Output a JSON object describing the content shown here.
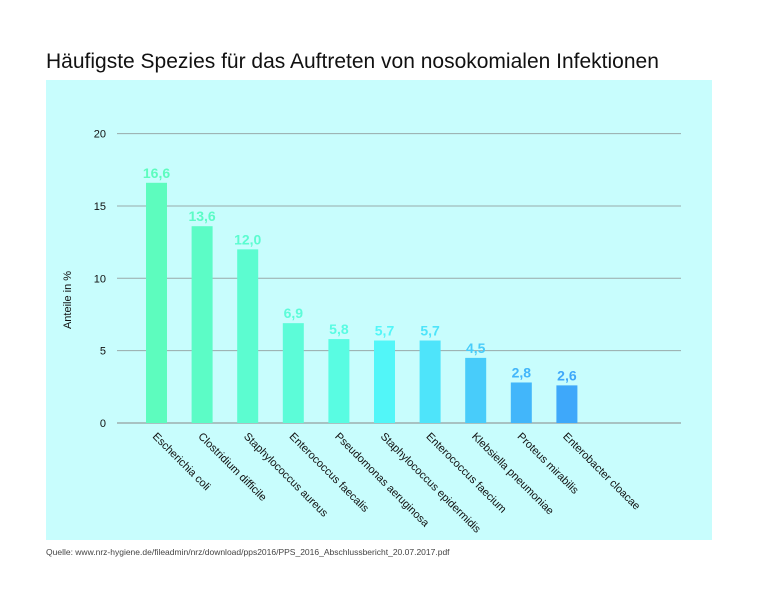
{
  "chart_data": {
    "type": "bar",
    "title": "Häufigste Spezies für das Auftreten von nosokomialen Infektionen",
    "ylabel": "Anteile in %",
    "xlabel": "",
    "ylim": [
      0,
      20
    ],
    "yticks": [
      0,
      5,
      10,
      15,
      20
    ],
    "grid": true,
    "categories": [
      "Escherichia coli",
      "Clostridium difficile",
      "Staphylococcus aureus",
      "Enterococcus faecalis",
      "Pseudomonas aeruginosa",
      "Staphylococcus epidermidis",
      "Enterococcus faecium",
      "Klebsiella pneumoniae",
      "Proteus mirabilis",
      "Enterobacter cloacae"
    ],
    "values": [
      16.6,
      13.6,
      12.0,
      6.9,
      5.8,
      5.7,
      5.7,
      4.5,
      2.8,
      2.6
    ],
    "data_labels": [
      "16,6",
      "13,6",
      "12,0",
      "6,9",
      "5,8",
      "5,7",
      "5,7",
      "4,5",
      "2,8",
      "2,6"
    ],
    "colors": [
      "#5dfcbe",
      "#5cfcc6",
      "#5cfcd0",
      "#5cfcd8",
      "#59fce2",
      "#52f6f8",
      "#4ee4fa",
      "#48ccfa",
      "#42b6fa",
      "#3ea8fa"
    ],
    "background": "#c8fdfd"
  },
  "source": "Quelle: www.nrz-hygiene.de/fileadmin/nrz/download/pps2016/PPS_2016_Abschlussbericht_20.07.2017.pdf"
}
